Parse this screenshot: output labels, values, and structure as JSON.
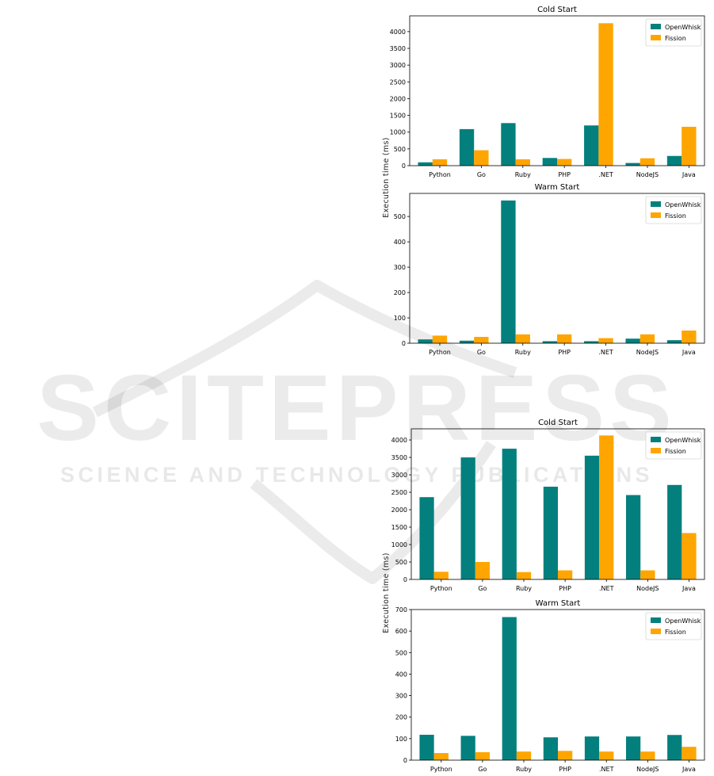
{
  "watermark": {
    "word": "SCITEPRESS",
    "tagline": "SCIENCE AND TECHNOLOGY PUBLICATIONS"
  },
  "colors": {
    "openwhisk": "#03807e",
    "fission": "#ffa500"
  },
  "figures": [
    {
      "ylabel": "Execution time (ms)"
    },
    {
      "ylabel": "Execution time (ms)"
    }
  ],
  "chart_data": [
    {
      "type": "bar",
      "title": "Cold Start",
      "categories": [
        "Python",
        "Go",
        "Ruby",
        "PHP",
        ".NET",
        "NodeJS",
        "Java"
      ],
      "series": [
        {
          "name": "OpenWhisk",
          "values": [
            100,
            1090,
            1270,
            230,
            1200,
            80,
            290
          ]
        },
        {
          "name": "Fission",
          "values": [
            190,
            460,
            190,
            200,
            4250,
            220,
            1160
          ]
        }
      ],
      "yticks": [
        0,
        500,
        1000,
        1500,
        2000,
        2500,
        3000,
        3500,
        4000
      ],
      "ylim": [
        0,
        4470
      ],
      "legend": "top-right"
    },
    {
      "type": "bar",
      "title": "Warm Start",
      "categories": [
        "Python",
        "Go",
        "Ruby",
        "PHP",
        ".NET",
        "NodeJS",
        "Java"
      ],
      "series": [
        {
          "name": "OpenWhisk",
          "values": [
            15,
            10,
            563,
            8,
            8,
            18,
            12
          ]
        },
        {
          "name": "Fission",
          "values": [
            30,
            25,
            35,
            35,
            20,
            35,
            50
          ]
        }
      ],
      "yticks": [
        0,
        100,
        200,
        300,
        400,
        500
      ],
      "ylim": [
        0,
        591
      ],
      "legend": "top-right"
    },
    {
      "type": "bar",
      "title": "Cold Start",
      "categories": [
        "Python",
        "Go",
        "Ruby",
        "PHP",
        ".NET",
        "NodeJS",
        "Java"
      ],
      "series": [
        {
          "name": "OpenWhisk",
          "values": [
            2360,
            3500,
            3750,
            2660,
            3550,
            2420,
            2710
          ]
        },
        {
          "name": "Fission",
          "values": [
            220,
            500,
            210,
            260,
            4130,
            260,
            1330
          ]
        }
      ],
      "yticks": [
        0,
        500,
        1000,
        1500,
        2000,
        2500,
        3000,
        3500,
        4000
      ],
      "ylim": [
        0,
        4320
      ],
      "legend": "top-right"
    },
    {
      "type": "bar",
      "title": "Warm Start",
      "categories": [
        "Python",
        "Go",
        "Ruby",
        "PHP",
        ".NET",
        "NodeJS",
        "Java"
      ],
      "series": [
        {
          "name": "OpenWhisk",
          "values": [
            118,
            113,
            665,
            106,
            110,
            110,
            117
          ]
        },
        {
          "name": "Fission",
          "values": [
            33,
            37,
            40,
            43,
            40,
            40,
            62
          ]
        }
      ],
      "yticks": [
        0,
        100,
        200,
        300,
        400,
        500,
        600,
        700
      ],
      "ylim": [
        0,
        700
      ],
      "legend": "top-right"
    }
  ]
}
